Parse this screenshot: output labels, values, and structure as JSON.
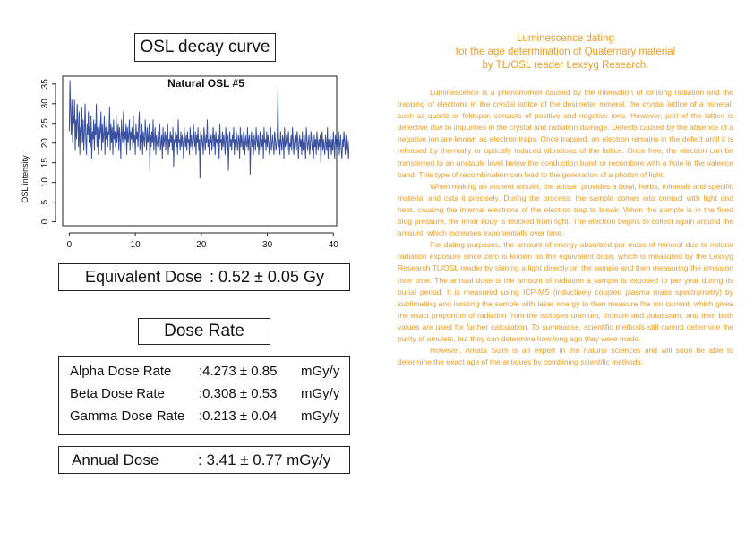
{
  "left_panel": {
    "osl_title": "OSL decay curve",
    "equivalent_dose": {
      "label": "Equivalent Dose",
      "value": ": 0.52 ± 0.05",
      "unit": "Gy"
    },
    "dose_rate_title": "Dose Rate",
    "dose_rates": [
      {
        "label": "Alpha Dose Rate",
        "value": ":4.273 ± 0.85",
        "unit": "mGy/y"
      },
      {
        "label": "Beta Dose Rate",
        "value": ":0.308 ± 0.53",
        "unit": "mGy/y"
      },
      {
        "label": "Gamma Dose Rate",
        "value": ":0.213 ± 0.04",
        "unit": "mGy/y"
      }
    ],
    "annual_dose": {
      "label": "Annual Dose",
      "value": ": 3.41 ± 0.77 mGy/y"
    }
  },
  "chart_data": {
    "type": "line",
    "title": "Natural OSL #5",
    "xlabel": "",
    "ylabel": "OSL intensity",
    "xlim": [
      -1,
      40.5
    ],
    "ylim": [
      -1,
      37
    ],
    "xticks": [
      0,
      10,
      20,
      30,
      40
    ],
    "yticks": [
      0,
      5,
      10,
      15,
      20,
      25,
      30,
      35
    ],
    "grid": false,
    "color": "#3a50a0",
    "x_step": 0.1,
    "values": [
      23,
      36,
      28,
      22,
      31,
      20,
      27,
      25,
      31,
      18,
      26,
      21,
      30,
      25,
      19,
      28,
      17,
      24,
      22,
      29,
      20,
      26,
      18,
      23,
      30,
      21,
      17,
      25,
      22,
      28,
      20,
      24,
      19,
      27,
      16,
      23,
      21,
      26,
      18,
      25,
      22,
      30,
      19,
      24,
      17,
      26,
      21,
      23,
      28,
      18,
      25,
      20,
      22,
      27,
      17,
      24,
      21,
      26,
      19,
      23,
      22,
      29,
      18,
      25,
      20,
      24,
      17,
      26,
      21,
      23,
      19,
      27,
      20,
      22,
      25,
      18,
      24,
      21,
      16,
      26,
      22,
      20,
      28,
      19,
      23,
      21,
      25,
      17,
      24,
      20,
      22,
      26,
      18,
      23,
      21,
      24,
      19,
      27,
      20,
      22,
      17,
      25,
      21,
      23,
      19,
      24,
      28,
      18,
      22,
      20,
      25,
      17,
      23,
      21,
      19,
      26,
      22,
      18,
      24,
      20,
      21,
      25,
      13,
      22,
      19,
      23,
      20,
      26,
      18,
      21,
      24,
      17,
      22,
      20,
      19,
      23,
      21,
      25,
      18,
      20,
      22,
      16,
      24,
      19,
      21,
      23,
      18,
      22,
      20,
      25,
      17,
      21,
      19,
      23,
      20,
      22,
      18,
      24,
      14,
      21,
      20,
      23,
      19,
      22,
      17,
      26,
      20,
      21,
      18,
      23,
      19,
      22,
      20,
      16,
      24,
      21,
      19,
      22,
      18,
      23,
      20,
      21,
      17,
      24,
      19,
      22,
      20,
      18,
      25,
      21,
      19,
      23,
      17,
      22,
      20,
      24,
      18,
      21,
      11,
      23,
      19,
      22,
      20,
      17,
      24,
      21,
      18,
      22,
      20,
      26,
      19,
      21,
      17,
      23,
      20,
      22,
      18,
      21,
      24,
      19,
      22,
      17,
      23,
      20,
      21,
      19,
      22,
      16,
      25,
      20,
      21,
      18,
      23,
      19,
      22,
      20,
      17,
      24,
      21,
      18,
      22,
      13,
      20,
      23,
      19,
      21,
      18,
      22,
      20,
      24,
      17,
      21,
      19,
      23,
      20,
      18,
      22,
      21,
      16,
      24,
      19,
      22,
      20,
      18,
      23,
      21,
      17,
      22,
      20,
      19,
      24,
      18,
      21,
      22,
      12,
      20,
      23,
      19,
      21,
      17,
      22,
      20,
      18,
      24,
      21,
      19,
      22,
      17,
      20,
      23,
      18,
      21,
      19,
      22,
      16,
      24,
      20,
      21,
      18,
      23,
      19,
      22,
      20,
      17,
      21,
      24,
      18,
      20,
      22,
      19,
      17,
      23,
      21,
      18,
      20,
      22,
      33,
      19,
      21,
      17,
      23,
      20,
      18,
      22,
      21,
      16,
      24,
      19,
      20,
      22,
      18,
      21,
      23,
      17,
      20,
      19,
      22,
      18,
      24,
      21,
      17,
      20,
      22,
      19,
      18,
      23,
      21,
      16,
      20,
      22,
      19,
      21,
      17,
      23,
      18,
      20,
      22,
      19,
      16,
      24,
      21,
      18,
      20,
      22,
      17,
      19,
      23,
      21,
      18,
      20,
      16,
      22,
      19,
      21,
      17,
      23,
      20,
      18,
      21,
      19,
      22,
      15,
      20,
      23,
      18,
      21,
      19,
      17,
      22,
      20,
      18,
      24,
      16,
      21,
      19,
      22,
      20,
      17,
      21,
      18,
      23,
      19,
      16,
      22,
      20,
      18,
      21,
      19,
      23,
      17,
      20,
      22,
      18,
      16,
      21,
      19,
      23,
      20,
      17,
      22,
      18,
      21,
      19,
      16,
      20,
      22,
      18,
      21,
      17,
      19,
      23,
      20,
      16,
      22,
      18,
      20,
      21,
      17,
      19,
      22,
      14,
      20,
      21,
      18,
      16,
      22,
      19,
      20,
      17,
      21,
      18,
      15,
      20,
      19,
      22,
      17,
      18,
      20,
      16,
      21,
      19,
      17,
      20,
      18,
      15,
      21,
      19,
      16,
      20,
      18,
      17,
      21,
      15,
      19,
      20,
      16,
      18,
      21,
      17,
      19,
      14,
      20,
      18,
      16,
      21,
      17,
      19,
      15,
      20,
      18,
      16,
      19,
      17,
      21,
      15,
      18,
      20,
      16,
      19,
      17,
      14,
      21,
      18,
      16,
      20,
      17,
      19,
      15,
      18,
      20,
      16,
      17,
      19,
      15,
      21,
      18,
      16,
      17,
      19,
      20,
      15,
      18,
      16,
      19,
      17,
      21,
      15,
      18,
      20,
      16,
      17,
      14,
      19,
      21,
      16,
      18,
      17,
      15,
      20,
      18,
      16,
      19,
      17,
      15,
      20,
      16,
      18,
      17,
      14,
      19,
      16,
      18,
      20,
      15,
      17,
      19,
      16,
      13,
      20,
      18,
      15,
      17,
      19,
      16,
      21,
      15,
      18,
      17,
      14,
      20,
      16,
      19,
      17,
      15,
      18,
      16,
      20,
      14,
      17,
      19,
      16,
      18,
      15,
      20,
      17,
      14,
      18,
      16,
      19,
      15,
      17,
      13,
      20,
      16,
      18,
      15,
      19,
      17,
      14,
      21,
      16,
      18,
      15,
      17,
      19,
      16,
      14,
      20,
      17,
      15,
      18,
      16,
      13,
      19,
      15,
      20,
      17,
      14,
      18,
      16,
      19,
      15,
      17,
      14,
      20,
      16,
      18,
      15,
      12,
      19,
      17,
      16,
      14,
      20,
      15,
      18,
      16,
      17,
      14,
      19,
      15,
      21,
      16,
      18,
      14,
      17,
      15,
      20,
      16,
      13,
      18,
      15,
      19,
      17,
      14,
      16,
      18,
      15,
      20,
      14,
      17,
      16,
      19,
      13,
      18,
      15,
      17,
      14,
      20,
      16,
      18,
      15,
      17,
      14,
      19,
      16,
      15,
      18,
      13,
      17,
      16,
      20,
      14,
      18,
      15,
      17,
      16,
      19,
      14,
      15,
      18,
      13,
      17,
      20,
      15,
      16,
      18,
      14,
      17,
      19,
      15,
      12,
      16,
      18,
      14,
      17,
      15,
      20,
      16,
      14,
      18,
      15,
      17,
      13,
      19,
      16,
      15,
      18,
      14,
      20,
      16,
      17,
      15,
      13,
      18,
      16,
      19,
      14,
      17,
      15,
      18,
      16,
      14,
      20,
      15,
      17,
      13,
      18,
      16,
      19,
      15,
      14,
      17,
      16,
      18,
      12,
      20,
      15,
      17,
      14,
      16,
      19,
      15,
      17,
      13,
      18,
      16,
      20,
      14,
      17,
      15,
      18,
      16,
      13,
      19,
      15,
      17,
      14,
      18,
      16,
      20,
      15,
      14,
      17,
      16,
      19,
      13,
      18,
      15,
      17,
      16,
      14,
      20,
      15,
      18,
      16,
      13,
      17,
      19,
      15,
      16,
      14,
      18,
      17,
      15,
      19,
      13,
      16,
      18,
      14,
      17,
      15,
      20,
      16,
      14,
      18,
      15,
      17,
      19,
      13,
      16,
      14,
      18,
      17,
      15,
      20,
      14,
      16,
      18,
      15,
      13,
      17,
      19,
      16,
      14,
      18,
      15,
      17,
      16,
      14,
      19,
      15,
      17,
      13,
      18,
      16,
      20,
      14,
      15,
      17,
      16,
      18,
      14,
      19,
      15,
      13,
      17,
      16,
      18,
      15,
      20,
      14,
      17,
      16,
      15,
      18,
      13,
      19,
      16,
      14,
      17,
      15,
      18,
      16,
      14,
      20,
      15,
      17,
      13,
      18,
      16,
      19,
      14,
      17,
      15,
      16,
      18,
      14,
      19,
      15,
      13,
      17,
      16,
      18,
      15,
      14,
      20,
      16,
      17,
      15,
      13,
      19,
      16,
      18,
      14,
      17,
      15,
      16,
      19,
      14,
      18,
      15,
      17,
      13,
      16,
      20,
      15,
      14,
      18,
      16,
      17,
      15,
      19,
      14,
      16,
      18,
      13,
      17,
      15,
      20,
      16,
      14,
      18,
      15,
      17,
      16,
      13,
      19,
      15,
      18,
      14,
      17,
      16,
      15,
      20,
      14,
      18,
      16,
      13,
      17,
      15,
      19,
      16,
      14,
      18,
      15,
      17,
      13,
      20,
      16,
      15,
      18,
      14,
      17,
      16,
      19,
      15,
      13,
      18,
      16,
      17,
      14,
      20,
      15,
      16,
      18,
      14,
      17,
      13,
      19,
      16,
      15,
      18,
      14,
      21,
      16,
      17,
      15,
      13,
      18,
      16,
      19,
      14,
      17,
      15,
      16,
      20,
      14,
      18,
      15,
      17,
      13,
      16,
      19,
      15,
      14
    ]
  },
  "article": {
    "title_lines": [
      "Luminescence dating",
      "for the age determination of Quaternary material",
      "by TL/OSL reader Lexsyg Research."
    ],
    "paragraphs": [
      "Luminescence is a phenomenon caused by the interaction of ionising radiation and the trapping of electrons in the crystal lattice of the dosimeter mineral. the crystal lattice of a mineral, such as quartz or feldspar, consists of positive and negative ions. However, part of the lattice is defective due to impurities in the crystal and radiation damage. Defects caused by the absence of a negative ion are known as electron traps. Once trapped, an electron remains in the defect until it is released by thermally or optically induced vibrations of the lattice. Once free, the electron can be transferred to an unstable level below the conduction band or recombine with a hole in the valence band. This type of recombination can lead to the generation of a photon of light.",
      "When making an ancient amulet, the artisan provides a bowl, herbs, minerals and specific material and cuts it precisely. During the process, the sample comes into contact with light and heat, causing the internal electrons of the electron trap to break. When the sample is in the fixed blog pressure, the inner body is blocked from light. The electron begins to collect again around the amount, which increases exponentially over time.",
      "For dating purposes, the amount of energy absorbed per mass of mineral due to natural radiation exposure since zero is known as the equivalent dose, which is measured by the Lexsyg Research TL/OSL reader by shining a light directly on the sample and then measuring the emission over time. The annual dose is the amount of radiation a sample is exposed to per year during its burial period. It is measured using ICP-MS (inductively coupled plasma mass spectrometry) by sublimating and ionizing the sample with laser energy to then measure the ion current, which gives the exact proportion of radiation from the isotopes uranium, thorium and potassium, and then both values are used for further calculation. To summarise, scientific methods still cannot determine the purity of amulets, but they can determine how long ago they were made.",
      "However, Amata Siam is an expert in the natural sciences and will soon be able to determine the exact age of the antiques by combining scientific methods."
    ]
  }
}
